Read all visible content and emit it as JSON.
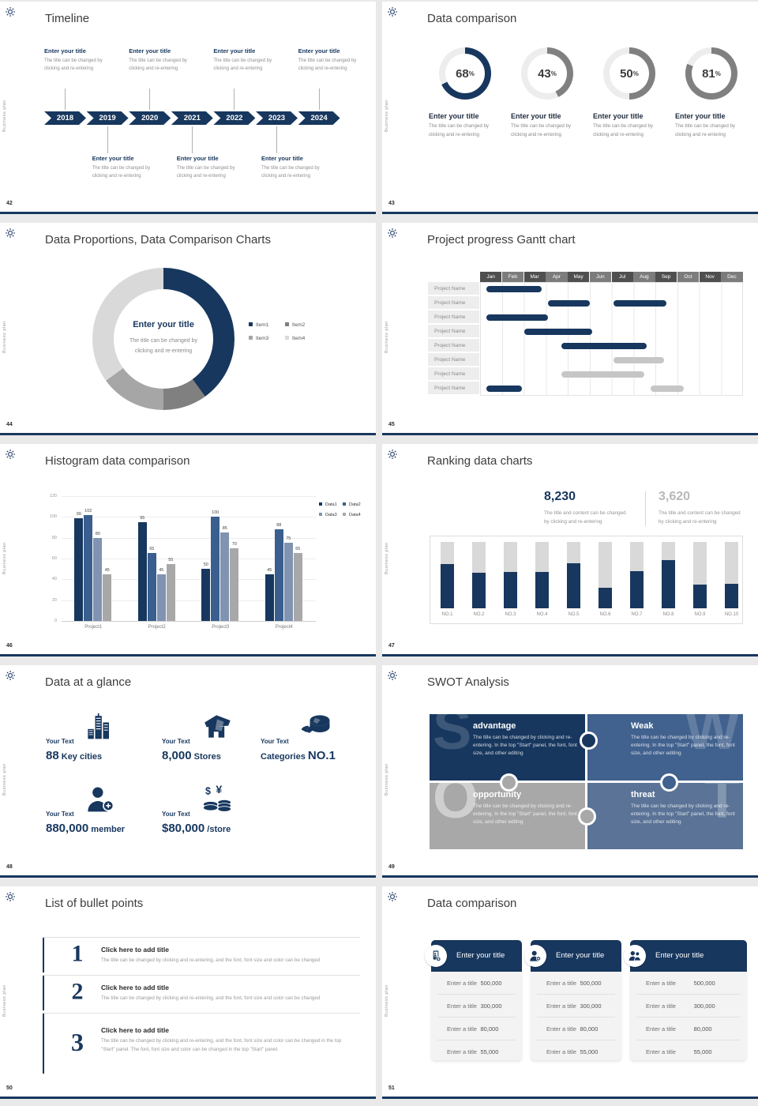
{
  "brand": {
    "vertical_text": "Business plan",
    "logo_icon": "gear-icon",
    "accent": "#17375e"
  },
  "slides": [
    {
      "number": "42",
      "title": "Timeline",
      "timeline": {
        "years": [
          "2018",
          "2019",
          "2020",
          "2021",
          "2022",
          "2023",
          "2024"
        ],
        "entry_title": "Enter your title",
        "entry_body": [
          "The title can be changed by",
          "clicking and re-entering"
        ],
        "top_slots": [
          0,
          2,
          4,
          6
        ],
        "bottom_slots": [
          1,
          3,
          5
        ]
      }
    },
    {
      "number": "43",
      "title": "Data comparison",
      "rings": {
        "values": [
          "68",
          "43",
          "50",
          "81"
        ],
        "percent_sign": "%",
        "arc_colors": [
          "#17375e",
          "#808080",
          "#808080",
          "#808080"
        ],
        "track_color": "#ededed",
        "item_title": "Enter your title",
        "item_body": [
          "The title can be changed by",
          "clicking and re-entering"
        ]
      }
    },
    {
      "number": "44",
      "title": "Data Proportions, Data Comparison Charts",
      "donut": {
        "center_title": "Enter your title",
        "center_body": [
          "The title can be changed by",
          "clicking and re-entering"
        ],
        "legend": [
          "Item1",
          "Item2",
          "Item3",
          "Item4"
        ],
        "colors": [
          "#17375e",
          "#808080",
          "#a6a6a6",
          "#d9d9d9"
        ],
        "values_percent": [
          40,
          10,
          15,
          35
        ]
      }
    },
    {
      "number": "45",
      "title": "Project progress Gantt chart",
      "gantt": {
        "months": [
          "Jan",
          "Feb",
          "Mar",
          "Apr",
          "May",
          "Jun",
          "Jul",
          "Aug",
          "Sep",
          "Oct",
          "Nov",
          "Dec"
        ],
        "row_label": "Project Name",
        "row_count": 8,
        "header_colors": [
          "#4f4f4f",
          "#7c7c7c"
        ],
        "bars": [
          {
            "row": 0,
            "start": 0.3,
            "end": 2.8,
            "color": "#17375e"
          },
          {
            "row": 1,
            "start": 3.1,
            "end": 5.0,
            "color": "#17375e"
          },
          {
            "row": 1,
            "start": 6.1,
            "end": 8.5,
            "color": "#17375e"
          },
          {
            "row": 2,
            "start": 0.3,
            "end": 3.1,
            "color": "#17375e"
          },
          {
            "row": 3,
            "start": 2.0,
            "end": 5.1,
            "color": "#17375e"
          },
          {
            "row": 4,
            "start": 3.7,
            "end": 7.6,
            "color": "#17375e"
          },
          {
            "row": 5,
            "start": 6.1,
            "end": 8.4,
            "color": "#c6c6c6"
          },
          {
            "row": 6,
            "start": 3.7,
            "end": 7.5,
            "color": "#c6c6c6"
          },
          {
            "row": 7,
            "start": 0.3,
            "end": 1.9,
            "color": "#17375e"
          },
          {
            "row": 7,
            "start": 7.8,
            "end": 9.3,
            "color": "#c6c6c6"
          }
        ]
      }
    },
    {
      "number": "46",
      "title": "Histogram data comparison",
      "histogram": {
        "categories": [
          "Project1",
          "Project2",
          "Project3",
          "Project4"
        ],
        "series": [
          {
            "name": "Data1",
            "color": "#17375e",
            "values": [
              99,
              95,
              50,
              45
            ]
          },
          {
            "name": "Data2",
            "color": "#3a5f8f",
            "values": [
              102,
              65,
              100,
              88
            ]
          },
          {
            "name": "Data3",
            "color": "#8093b0",
            "values": [
              80,
              45,
              85,
              75
            ]
          },
          {
            "name": "Data4",
            "color": "#a8a8a8",
            "values": [
              45,
              55,
              70,
              65
            ]
          }
        ],
        "y_ticks": [
          0,
          20,
          40,
          60,
          80,
          100,
          120
        ],
        "y_max": 120
      }
    },
    {
      "number": "47",
      "title": "Ranking data charts",
      "ranking": {
        "stats": [
          {
            "value": "8,230",
            "color": "#17375e",
            "caption": [
              "The title and content can be changed",
              "by clicking and re-entering"
            ]
          },
          {
            "value": "3,620",
            "color": "#b8b8b8",
            "caption": [
              "The title and content can be changed",
              "by clicking and re-entering"
            ]
          }
        ],
        "categories": [
          "NO.1",
          "NO.2",
          "NO.3",
          "NO.4",
          "NO.5",
          "NO.6",
          "NO.7",
          "NO.8",
          "NO.9",
          "NO.10"
        ],
        "fill_percent": [
          67,
          53,
          55,
          55,
          68,
          31,
          56,
          73,
          36,
          37
        ],
        "bar_color": "#17375e",
        "track_color": "#d9d9d9"
      }
    },
    {
      "number": "48",
      "title": "Data at a glance",
      "stats": [
        {
          "label": "Your Text",
          "icon": "city-buildings-icon",
          "big": "88",
          "small": "Key cities",
          "small_first": false
        },
        {
          "label": "Your Text",
          "icon": "store-icon",
          "big": "8,000",
          "small": "Stores",
          "small_first": false
        },
        {
          "label": "Your Text",
          "icon": "pie-3d-icon",
          "big": "NO.1",
          "small": "Categories",
          "small_first": true
        },
        {
          "label": "Your Text",
          "icon": "member-add-icon",
          "big": "880,000",
          "small": "member",
          "small_first": false
        },
        {
          "label": "Your Text",
          "icon": "coins-icon",
          "big": "$80,000",
          "small": "/store",
          "small_first": false
        }
      ]
    },
    {
      "number": "49",
      "title": "SWOT Analysis",
      "swot": [
        {
          "letter": "S",
          "word": "advantage",
          "color": "#17375e",
          "letter_side": "left",
          "letter_opacity": 0.16,
          "body": "The title can be changed by clicking and re-entering. In the top \"Start\" panel, the font, font size, and other editing"
        },
        {
          "letter": "W",
          "word": "Weak",
          "color": "#41618e",
          "letter_side": "right",
          "letter_opacity": 0.18,
          "body": "The title can be changed by clicking and re-entering. In the top \"Start\" panel, the font, font size, and other editing"
        },
        {
          "letter": "O",
          "word": "opportunity",
          "color": "#a8a8a8",
          "letter_side": "left",
          "letter_opacity": 0.45,
          "body": "The title can be changed by clicking and re-entering. In the top \"Start\" panel, the font, font size, and other editing"
        },
        {
          "letter": "T",
          "word": "threat",
          "color": "#5a7396",
          "letter_side": "right",
          "letter_opacity": 0.25,
          "body": "The title can be changed by clicking and re-entering. In the top \"Start\" panel, the font, font size, and other editing"
        }
      ]
    },
    {
      "number": "50",
      "title": "List of bullet points",
      "bullets": [
        {
          "num": "1",
          "title": "Click here to add title",
          "desc": "The title can be changed by clicking and re-entering, and the font, font size and color can be changed"
        },
        {
          "num": "2",
          "title": "Click here to add title",
          "desc": "The title can be changed by clicking and re-entering, and the font, font size and color can be changed"
        },
        {
          "num": "3",
          "title": "Click here to add title",
          "desc": "The title can be changed by clicking and re-entering, and the font, font size and color can be changed in the top \"Start\" panel. The font, font size and color can be changed in the top \"Start\" panel."
        }
      ]
    },
    {
      "number": "51",
      "title": "Data comparison",
      "cards": [
        {
          "icon": "device-add-icon",
          "title": "Enter your title",
          "rows": [
            {
              "label": "Enter a title",
              "value": "500,000"
            },
            {
              "label": "Enter a title",
              "value": "300,000"
            },
            {
              "label": "Enter a title",
              "value": "80,000"
            },
            {
              "label": "Enter a title",
              "value": "55,000"
            }
          ]
        },
        {
          "icon": "person-add-icon",
          "title": "Enter your title",
          "rows": [
            {
              "label": "Enter a title",
              "value": "500,000"
            },
            {
              "label": "Enter a title",
              "value": "300,000"
            },
            {
              "label": "Enter a title",
              "value": "80,000"
            },
            {
              "label": "Enter a title",
              "value": "55,000"
            }
          ]
        },
        {
          "icon": "people-icon",
          "title": "Enter your title",
          "rows": [
            {
              "label": "Enter a title",
              "value": "500,000"
            },
            {
              "label": "Enter a title",
              "value": "300,000"
            },
            {
              "label": "Enter a title",
              "value": "80,000"
            },
            {
              "label": "Enter a title",
              "value": "55,000"
            }
          ]
        }
      ]
    }
  ],
  "chart_data": [
    {
      "type": "pie",
      "variant": "progress-rings",
      "title": "Data comparison",
      "values_percent": [
        68,
        43,
        50,
        81
      ]
    },
    {
      "type": "pie",
      "variant": "donut",
      "title": "Data Proportions, Data Comparison Charts",
      "labels": [
        "Item1",
        "Item2",
        "Item3",
        "Item4"
      ],
      "values_percent": [
        40,
        10,
        15,
        35
      ]
    },
    {
      "type": "table",
      "variant": "gantt",
      "title": "Project progress Gantt chart",
      "x_labels": [
        "Jan",
        "Feb",
        "Mar",
        "Apr",
        "May",
        "Jun",
        "Jul",
        "Aug",
        "Sep",
        "Oct",
        "Nov",
        "Dec"
      ],
      "row_label": "Project Name",
      "rows": 8,
      "bars": [
        {
          "row": 1,
          "months": "Jan-Mar"
        },
        {
          "row": 2,
          "months": "Apr-May"
        },
        {
          "row": 2,
          "months": "Jul-Sep"
        },
        {
          "row": 3,
          "months": "Jan-Mar"
        },
        {
          "row": 4,
          "months": "Mar-May"
        },
        {
          "row": 5,
          "months": "Apr-Aug"
        },
        {
          "row": 6,
          "months": "Jul-Sep"
        },
        {
          "row": 7,
          "months": "Apr-Aug"
        },
        {
          "row": 8,
          "months": "Jan-Feb"
        },
        {
          "row": 8,
          "months": "Sep-Oct"
        }
      ]
    },
    {
      "type": "bar",
      "title": "Histogram data comparison",
      "categories": [
        "Project1",
        "Project2",
        "Project3",
        "Project4"
      ],
      "series": [
        {
          "name": "Data1",
          "values": [
            99,
            95,
            50,
            45
          ]
        },
        {
          "name": "Data2",
          "values": [
            102,
            65,
            100,
            88
          ]
        },
        {
          "name": "Data3",
          "values": [
            80,
            45,
            85,
            75
          ]
        },
        {
          "name": "Data4",
          "values": [
            45,
            55,
            70,
            65
          ]
        }
      ],
      "ylim": [
        0,
        120
      ],
      "legend_position": "top-right"
    },
    {
      "type": "bar",
      "variant": "progress-columns",
      "title": "Ranking data charts",
      "categories": [
        "NO.1",
        "NO.2",
        "NO.3",
        "NO.4",
        "NO.5",
        "NO.6",
        "NO.7",
        "NO.8",
        "NO.9",
        "NO.10"
      ],
      "values_percent": [
        67,
        53,
        55,
        55,
        68,
        31,
        56,
        73,
        36,
        37
      ],
      "stats": [
        "8,230",
        "3,620"
      ]
    }
  ]
}
